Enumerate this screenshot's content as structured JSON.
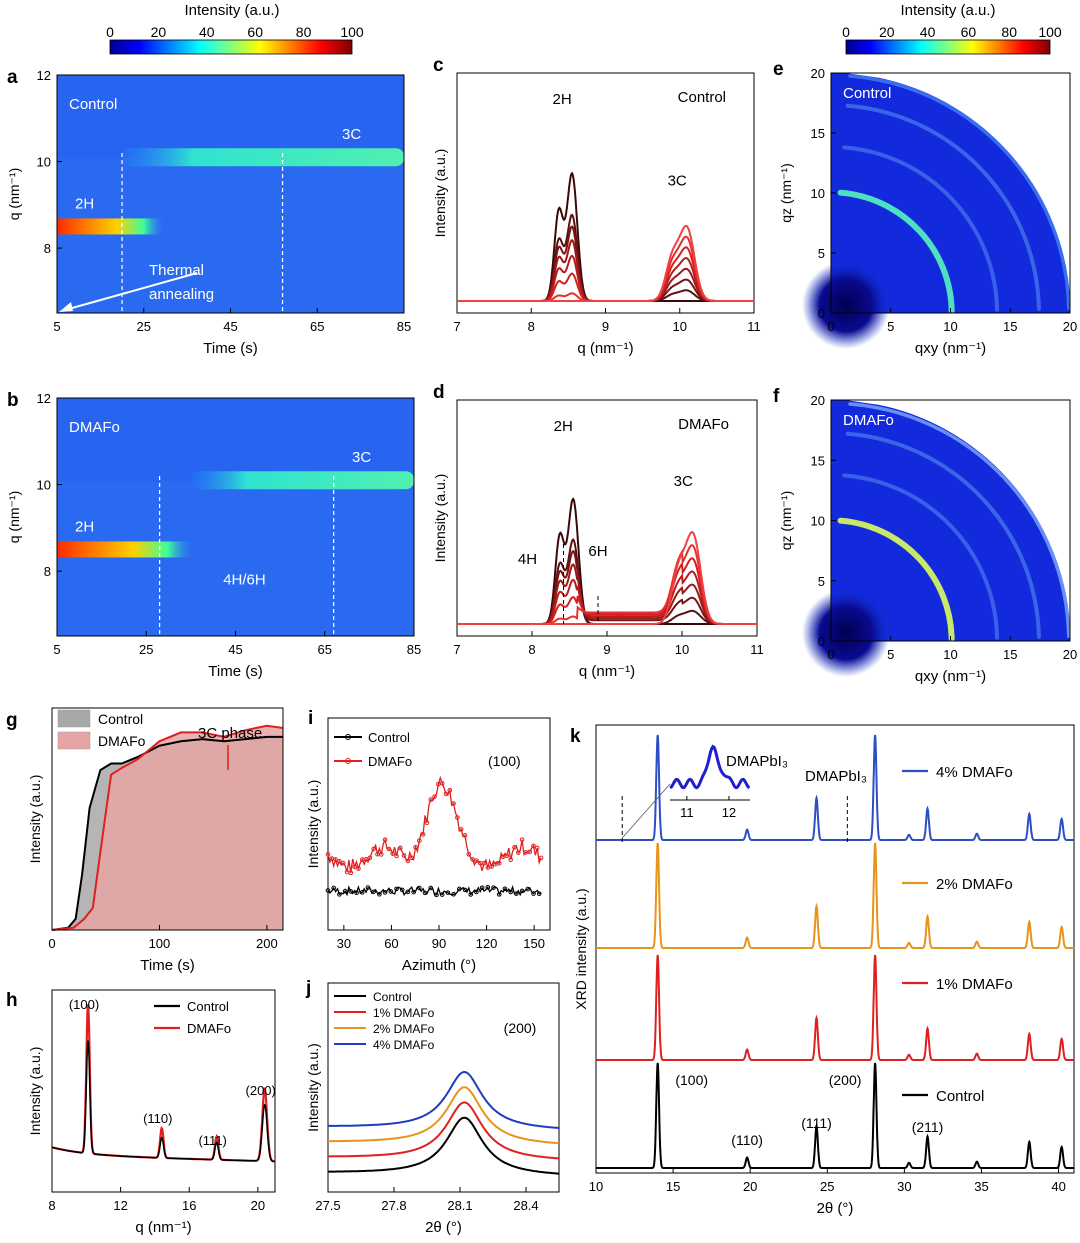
{
  "colorbar": {
    "title": "Intensity (a.u.)",
    "ticks": [
      0,
      20,
      40,
      60,
      80,
      100
    ]
  },
  "chart_data": [
    {
      "id": "a",
      "type": "heatmap",
      "panel_label": "a",
      "label": "Control",
      "xlabel": "Time (s)",
      "ylabel": "q (nm⁻¹)",
      "xlim": [
        5,
        85
      ],
      "ylim": [
        6.5,
        12
      ],
      "xticks": [
        5,
        25,
        45,
        65,
        85
      ],
      "yticks": [
        8,
        10,
        12
      ],
      "bands": [
        {
          "name": "2H",
          "q": 8.5,
          "t_start": 5,
          "t_end": 30
        },
        {
          "name": "3C",
          "q": 10.1,
          "t_start": 20,
          "t_end": 85
        }
      ],
      "dashed_lines_t": [
        20,
        57
      ],
      "annotation": "Thermal annealing"
    },
    {
      "id": "b",
      "type": "heatmap",
      "panel_label": "b",
      "label": "DMAFo",
      "xlabel": "Time (s)",
      "ylabel": "q (nm⁻¹)",
      "xlim": [
        5,
        85
      ],
      "ylim": [
        6.5,
        12
      ],
      "xticks": [
        5,
        25,
        45,
        65,
        85
      ],
      "yticks": [
        8,
        10,
        12
      ],
      "bands": [
        {
          "name": "2H",
          "q": 8.5,
          "t_start": 5,
          "t_end": 36
        },
        {
          "name": "3C",
          "q": 10.1,
          "t_start": 35,
          "t_end": 85
        },
        {
          "name": "4H/6H",
          "q": 8.2,
          "t_start": 40,
          "t_end": 60
        }
      ],
      "dashed_lines_t": [
        28,
        67
      ]
    },
    {
      "id": "c",
      "type": "line",
      "panel_label": "c",
      "label": "Control",
      "xlabel": "q (nm⁻¹)",
      "ylabel": "Intensity (a.u.)",
      "xlim": [
        7,
        11
      ],
      "xticks": [
        7,
        8,
        9,
        10,
        11
      ],
      "peaks": [
        {
          "name": "2H",
          "q": 8.55,
          "max": 1.0
        },
        {
          "name": "3C",
          "q": 10.1,
          "max": 0.52
        }
      ]
    },
    {
      "id": "d",
      "type": "line",
      "panel_label": "d",
      "label": "DMAFo",
      "xlabel": "q (nm⁻¹)",
      "ylabel": "Intensity (a.u.)",
      "xlim": [
        7,
        11
      ],
      "xticks": [
        7,
        8,
        9,
        10,
        11
      ],
      "peaks": [
        {
          "name": "2H",
          "q": 8.55,
          "max": 1.0
        },
        {
          "name": "3C",
          "q": 10.15,
          "max": 0.65
        },
        {
          "name": "4H",
          "q": 8.42,
          "max": 0.3
        },
        {
          "name": "6H",
          "q": 8.88,
          "max": 0.08
        }
      ]
    },
    {
      "id": "e",
      "type": "heatmap",
      "panel_label": "e",
      "label": "Control",
      "xlabel": "qxy (nm⁻¹)",
      "ylabel": "qz (nm⁻¹)",
      "xlim": [
        0,
        20
      ],
      "ylim": [
        0,
        20
      ],
      "xticks": [
        0,
        5,
        10,
        15,
        20
      ],
      "yticks": [
        0,
        5,
        10,
        15,
        20
      ]
    },
    {
      "id": "f",
      "type": "heatmap",
      "panel_label": "f",
      "label": "DMAFo",
      "xlabel": "qxy (nm⁻¹)",
      "ylabel": "qz (nm⁻¹)",
      "xlim": [
        0,
        20
      ],
      "ylim": [
        0,
        20
      ],
      "xticks": [
        0,
        5,
        10,
        15,
        20
      ],
      "yticks": [
        0,
        5,
        10,
        15,
        20
      ]
    },
    {
      "id": "g",
      "type": "area",
      "panel_label": "g",
      "xlabel": "Time (s)",
      "ylabel": "Intensity (a.u.)",
      "xlim": [
        0,
        215
      ],
      "ylim": [
        0,
        1
      ],
      "xticks": [
        0,
        100,
        200
      ],
      "annotation": "3C phase",
      "series": [
        {
          "name": "Control",
          "color": "#000000",
          "fill": "#a8a8a8",
          "x": [
            0,
            15,
            22,
            28,
            35,
            45,
            55,
            65,
            80,
            100,
            120,
            140,
            160,
            180,
            200,
            215
          ],
          "y": [
            0,
            0.01,
            0.05,
            0.25,
            0.55,
            0.72,
            0.75,
            0.75,
            0.78,
            0.83,
            0.85,
            0.86,
            0.85,
            0.86,
            0.87,
            0.87
          ]
        },
        {
          "name": "DMAFo",
          "color": "#e02020",
          "fill": "#e7a4a4",
          "x": [
            0,
            20,
            30,
            38,
            45,
            55,
            65,
            80,
            100,
            120,
            140,
            160,
            180,
            200,
            215
          ],
          "y": [
            0,
            0.01,
            0.05,
            0.1,
            0.35,
            0.7,
            0.73,
            0.77,
            0.85,
            0.89,
            0.89,
            0.87,
            0.9,
            0.92,
            0.91
          ]
        }
      ]
    },
    {
      "id": "h",
      "type": "line",
      "panel_label": "h",
      "xlabel": "q (nm⁻¹)",
      "ylabel": "Intensity (a.u.)",
      "xlim": [
        8,
        21
      ],
      "xticks": [
        8,
        12,
        16,
        20
      ],
      "peak_labels": [
        {
          "text": "(100)",
          "q": 10.1
        },
        {
          "text": "(110)",
          "q": 14.4
        },
        {
          "text": "(111)",
          "q": 17.6
        },
        {
          "text": "(200)",
          "q": 20.4
        }
      ],
      "series": [
        {
          "name": "Control",
          "color": "#000000",
          "peaks": [
            [
              10.1,
              0.72
            ],
            [
              14.4,
              0.13
            ],
            [
              17.6,
              0.11
            ],
            [
              20.4,
              0.36
            ]
          ]
        },
        {
          "name": "DMAFo",
          "color": "#e02020",
          "peaks": [
            [
              10.1,
              0.95
            ],
            [
              14.4,
              0.19
            ],
            [
              17.6,
              0.15
            ],
            [
              20.4,
              0.46
            ]
          ]
        }
      ]
    },
    {
      "id": "i",
      "type": "line",
      "panel_label": "i",
      "xlabel": "Azimuth (°)",
      "ylabel": "Intensity (a.u.)",
      "xlim": [
        20,
        160
      ],
      "xticks": [
        30,
        60,
        90,
        120,
        150
      ],
      "annotation": "(100)",
      "series": [
        {
          "name": "Control",
          "color": "#000000"
        },
        {
          "name": "DMAFo",
          "color": "#e02020"
        }
      ]
    },
    {
      "id": "j",
      "type": "line",
      "panel_label": "j",
      "xlabel": "2θ (°)",
      "ylabel": "Intensity (a.u.)",
      "xlim": [
        27.5,
        28.55
      ],
      "xticks": [
        27.5,
        27.8,
        28.1,
        28.4
      ],
      "annotation": "(200)",
      "series": [
        {
          "name": "Control",
          "color": "#000000",
          "offset": 0.0,
          "height": 0.34
        },
        {
          "name": "1% DMAFo",
          "color": "#e02020",
          "offset": 0.09,
          "height": 0.34
        },
        {
          "name": "2% DMAFo",
          "color": "#e8941a",
          "offset": 0.18,
          "height": 0.34
        },
        {
          "name": "4% DMAFo",
          "color": "#1f3dbd",
          "offset": 0.27,
          "height": 0.34
        }
      ]
    },
    {
      "id": "k",
      "type": "line",
      "panel_label": "k",
      "xlabel": "2θ (°)",
      "ylabel": "XRD intensity (a.u.)",
      "xlim": [
        10,
        41
      ],
      "xticks": [
        10,
        15,
        20,
        25,
        30,
        35,
        40
      ],
      "peak_labels": [
        {
          "text": "(100)",
          "x": 14.0
        },
        {
          "text": "(110)",
          "x": 19.8
        },
        {
          "text": "(111)",
          "x": 24.3
        },
        {
          "text": "(200)",
          "x": 28.1
        },
        {
          "text": "(211)",
          "x": 31.5
        }
      ],
      "impurity_label": "DMAPbI₃",
      "impurity_positions": [
        11.7,
        26.3
      ],
      "inset": {
        "label": "DMAPbI₃",
        "xticks": [
          11,
          12
        ]
      },
      "peaks": [
        [
          14.0,
          1.0
        ],
        [
          19.8,
          0.1
        ],
        [
          24.3,
          0.4
        ],
        [
          28.1,
          1.0
        ],
        [
          30.3,
          0.05
        ],
        [
          31.5,
          0.3
        ],
        [
          34.7,
          0.06
        ],
        [
          38.1,
          0.25
        ],
        [
          40.2,
          0.2
        ]
      ],
      "series": [
        {
          "name": "4% DMAFo",
          "color": "#2c4fc4"
        },
        {
          "name": "2% DMAFo",
          "color": "#e8941a"
        },
        {
          "name": "1% DMAFo",
          "color": "#e02020"
        },
        {
          "name": "Control",
          "color": "#000000"
        }
      ]
    }
  ]
}
